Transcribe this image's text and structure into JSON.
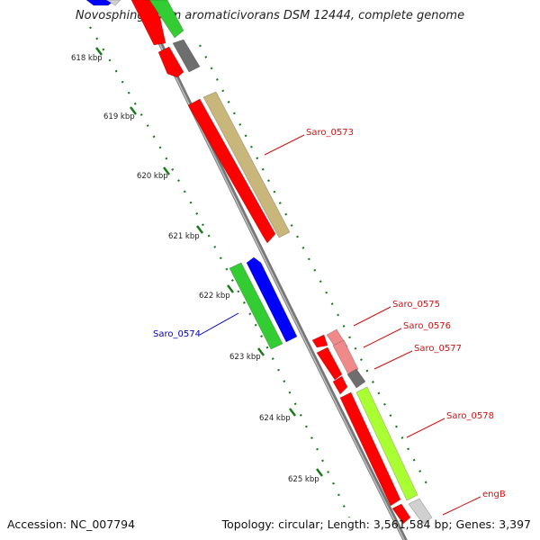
{
  "title": "Novosphingobium aromaticivorans DSM 12444, complete genome",
  "footer": {
    "accession": "Accession: NC_007794",
    "summary": "Topology: circular; Length: 3,561,584 bp; Genes: 3,397"
  },
  "colors": {
    "backbone": "#8a8a8a",
    "ticks": "#1a7a1a",
    "forward_label": "#d11010",
    "reverse_label": "#0000c8",
    "red": "#ff0000",
    "green": "#33cc33",
    "blue": "#0000ff",
    "khaki": "#c8b67a",
    "pink": "#f08a8a",
    "dark_gray": "#6e6e6e",
    "light_gray": "#d0d0d0",
    "lime": "#aaff33"
  },
  "axis": {
    "unit": "kbp",
    "ticks": [
      "618 kbp",
      "619 kbp",
      "620 kbp",
      "621 kbp",
      "622 kbp",
      "623 kbp",
      "624 kbp",
      "625 kbp"
    ]
  },
  "labels": [
    {
      "text": "Saro_0573",
      "strand": "forward"
    },
    {
      "text": "Saro_0574",
      "strand": "reverse"
    },
    {
      "text": "Saro_0575",
      "strand": "forward"
    },
    {
      "text": "Saro_0576",
      "strand": "forward"
    },
    {
      "text": "Saro_0577",
      "strand": "forward"
    },
    {
      "text": "Saro_0578",
      "strand": "forward"
    },
    {
      "text": "engB",
      "strand": "forward"
    }
  ]
}
